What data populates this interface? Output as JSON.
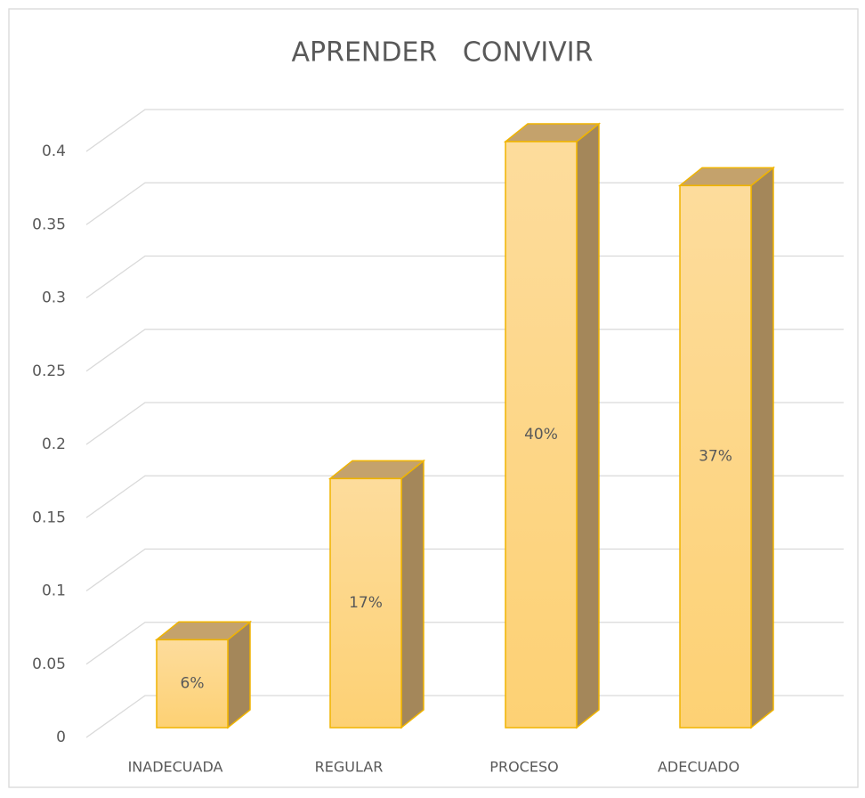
{
  "chart_data": {
    "type": "bar3d",
    "title": "APRENDER   CONVIVIR",
    "categories": [
      "INADECUADA",
      "REGULAR",
      "PROCESO",
      "ADECUADO"
    ],
    "values": [
      0.06,
      0.17,
      0.4,
      0.37
    ],
    "value_labels": [
      "6%",
      "17%",
      "40%",
      "37%"
    ],
    "color": "#fdd88a",
    "ylim": [
      0,
      0.4
    ],
    "yticks": [
      0,
      0.05,
      0.1,
      0.15,
      0.2,
      0.25,
      0.3,
      0.35,
      0.4
    ],
    "grid": true
  }
}
